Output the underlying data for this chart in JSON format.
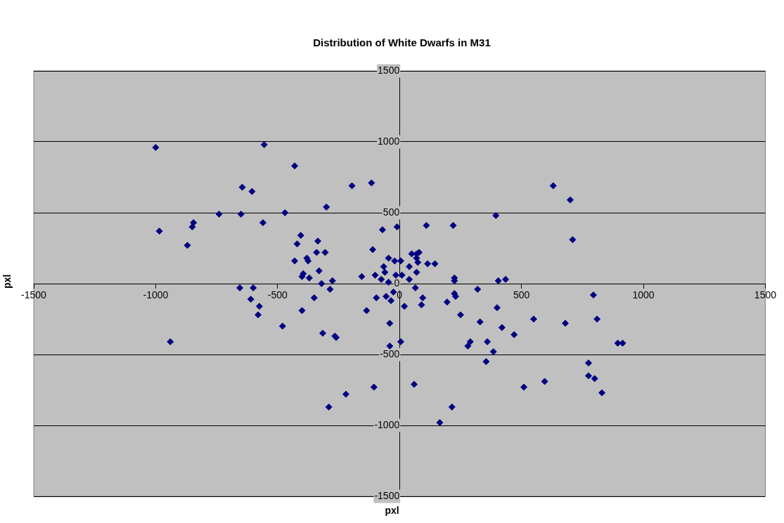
{
  "chart_data": {
    "type": "scatter",
    "title": "Distribution of White Dwarfs in M31",
    "xlabel": "pxl",
    "ylabel": "pxl",
    "xlim": [
      -1500,
      1500
    ],
    "xticks": [
      -1500,
      -1000,
      -500,
      0,
      500,
      1000,
      1500
    ],
    "ylim": [
      -1500,
      1500
    ],
    "yticks": [
      -1500,
      -1000,
      -500,
      0,
      500,
      1000,
      1500
    ],
    "grid": "y",
    "marker": "diamond",
    "legend": false,
    "series": [
      {
        "color": "#000080",
        "x": [
          -1000,
          -985,
          -940,
          -870,
          -850,
          -845,
          -740,
          -655,
          -650,
          -645,
          -610,
          -605,
          -600,
          -580,
          -575,
          -560,
          -555,
          -480,
          -470,
          -430,
          -430,
          -420,
          -405,
          -400,
          -400,
          -395,
          -380,
          -375,
          -370,
          -350,
          -340,
          -335,
          -330,
          -320,
          -315,
          -305,
          -300,
          -290,
          -285,
          -275,
          -265,
          -260,
          -220,
          -195,
          -155,
          -135,
          -115,
          -110,
          -105,
          -100,
          -95,
          -75,
          -70,
          -65,
          -60,
          -55,
          -45,
          -45,
          -40,
          -40,
          -35,
          -25,
          -20,
          -15,
          -10,
          5,
          5,
          10,
          20,
          40,
          40,
          50,
          60,
          65,
          70,
          70,
          70,
          75,
          80,
          90,
          95,
          110,
          115,
          145,
          165,
          195,
          215,
          220,
          225,
          225,
          225,
          230,
          250,
          280,
          290,
          320,
          330,
          355,
          360,
          385,
          395,
          400,
          405,
          420,
          435,
          470,
          510,
          550,
          595,
          630,
          680,
          700,
          710,
          775,
          775,
          795,
          800,
          810,
          830,
          895,
          915
        ],
        "values": [
          960,
          370,
          -410,
          270,
          400,
          430,
          490,
          -30,
          490,
          680,
          -110,
          650,
          -30,
          -220,
          -160,
          430,
          980,
          -300,
          500,
          160,
          830,
          280,
          340,
          -190,
          50,
          70,
          180,
          160,
          40,
          -100,
          220,
          300,
          90,
          0,
          -350,
          220,
          540,
          -870,
          -40,
          20,
          -370,
          -380,
          -780,
          690,
          50,
          -190,
          710,
          240,
          -730,
          60,
          -100,
          30,
          380,
          120,
          80,
          -90,
          180,
          10,
          -440,
          -280,
          -120,
          -60,
          160,
          60,
          400,
          160,
          -410,
          60,
          -160,
          120,
          30,
          210,
          -710,
          -30,
          210,
          180,
          80,
          150,
          220,
          -150,
          -100,
          410,
          140,
          140,
          -980,
          -130,
          -870,
          410,
          40,
          20,
          -70,
          -90,
          -220,
          -440,
          -410,
          -40,
          -270,
          -550,
          -410,
          -480,
          480,
          -170,
          20,
          -310,
          30,
          -360,
          -730,
          -250,
          -690,
          690,
          -280,
          590,
          310,
          -560,
          -650,
          -80,
          -670,
          -250,
          -770,
          -420,
          -420
        ]
      }
    ]
  }
}
